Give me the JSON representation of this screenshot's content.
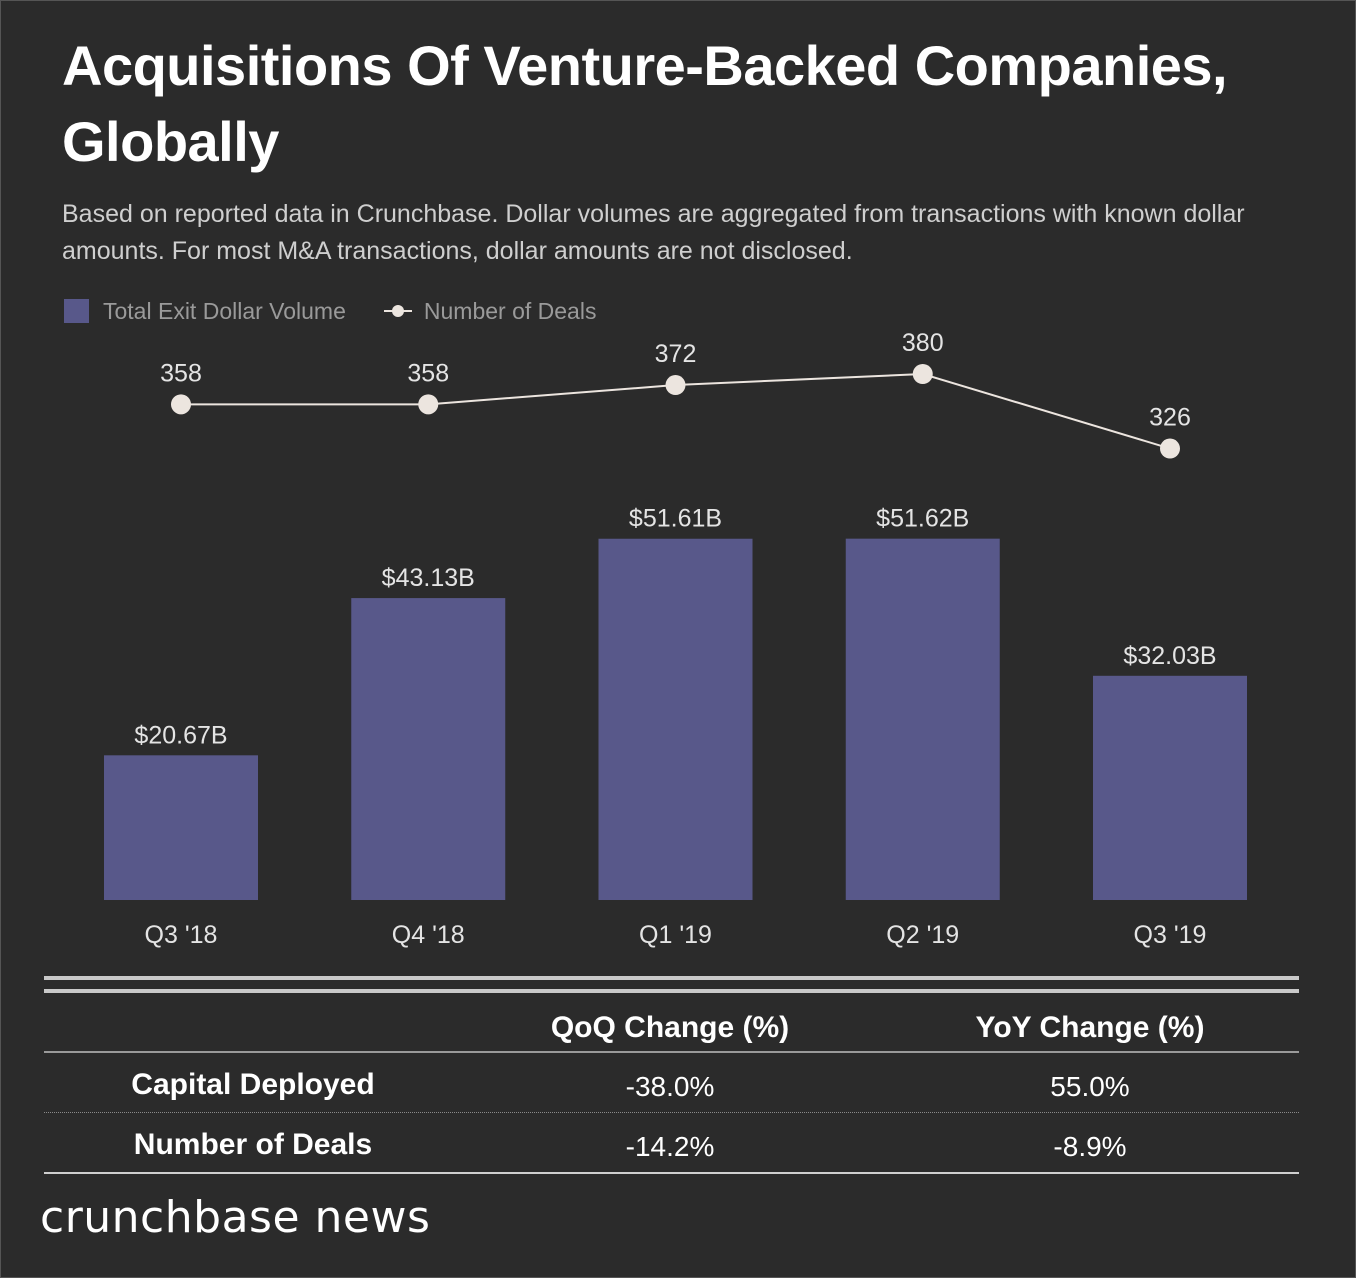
{
  "title": "Acquisitions Of Venture-Backed Companies, Globally",
  "subtitle": "Based on reported data in Crunchbase. Dollar volumes are aggregated from transactions with known dollar amounts. For most M&A transactions, dollar amounts are not disclosed.",
  "legend": {
    "bar_label": "Total Exit Dollar Volume",
    "line_label": "Number of Deals"
  },
  "colors": {
    "background": "#2b2b2b",
    "bar": "#58588a",
    "line": "#ece5df",
    "text": "#e4e4e4"
  },
  "chart_data": {
    "type": "bar",
    "title": "Acquisitions Of Venture-Backed Companies, Globally",
    "categories": [
      "Q3 '18",
      "Q4 '18",
      "Q1 '19",
      "Q2 '19",
      "Q3 '19"
    ],
    "series": [
      {
        "name": "Total Exit Dollar Volume",
        "type": "bar",
        "unit": "$B",
        "values": [
          20.67,
          43.13,
          51.61,
          51.62,
          32.03
        ],
        "labels": [
          "$20.67B",
          "$43.13B",
          "$51.61B",
          "$51.62B",
          "$32.03B"
        ]
      },
      {
        "name": "Number of Deals",
        "type": "line",
        "values": [
          358,
          358,
          372,
          380,
          326
        ],
        "labels": [
          "358",
          "358",
          "372",
          "380",
          "326"
        ]
      }
    ],
    "xlabel": "",
    "ylabel": "",
    "grid": false,
    "legend_position": "top-left"
  },
  "table": {
    "headers": [
      "QoQ Change (%)",
      "YoY Change (%)"
    ],
    "rows": [
      {
        "label": "Capital Deployed",
        "qoq": "-38.0%",
        "yoy": "55.0%"
      },
      {
        "label": "Number of Deals",
        "qoq": "-14.2%",
        "yoy": "-8.9%"
      }
    ]
  },
  "brand": "crunchbase news"
}
